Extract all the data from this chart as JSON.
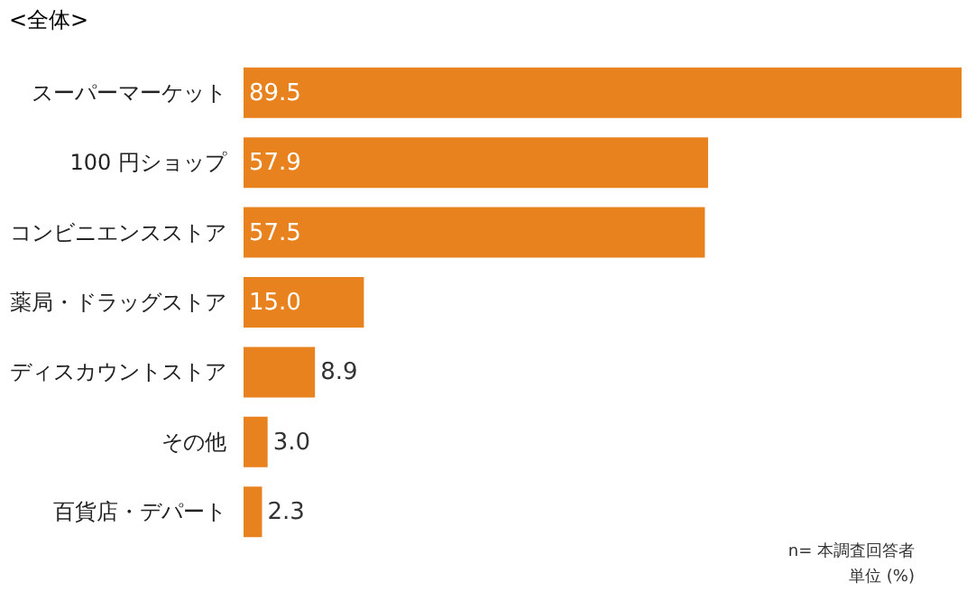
{
  "chart_data": {
    "type": "bar",
    "orientation": "horizontal",
    "title": "<全体>",
    "categories": [
      "スーパーマーケット",
      "100 円ショップ",
      "コンビニエンスストア",
      "薬局・ドラッグストア",
      "ディスカウントストア",
      "その他",
      "百貨店・デパート"
    ],
    "values": [
      89.5,
      57.9,
      57.5,
      15.0,
      8.9,
      3.0,
      2.3
    ],
    "value_labels": [
      "89.5",
      "57.9",
      "57.5",
      "15.0",
      "8.9",
      "3.0",
      "2.3"
    ],
    "color": "#e8821e",
    "annotations": [
      "n= 本調査回答者",
      "単位 (%)"
    ]
  }
}
